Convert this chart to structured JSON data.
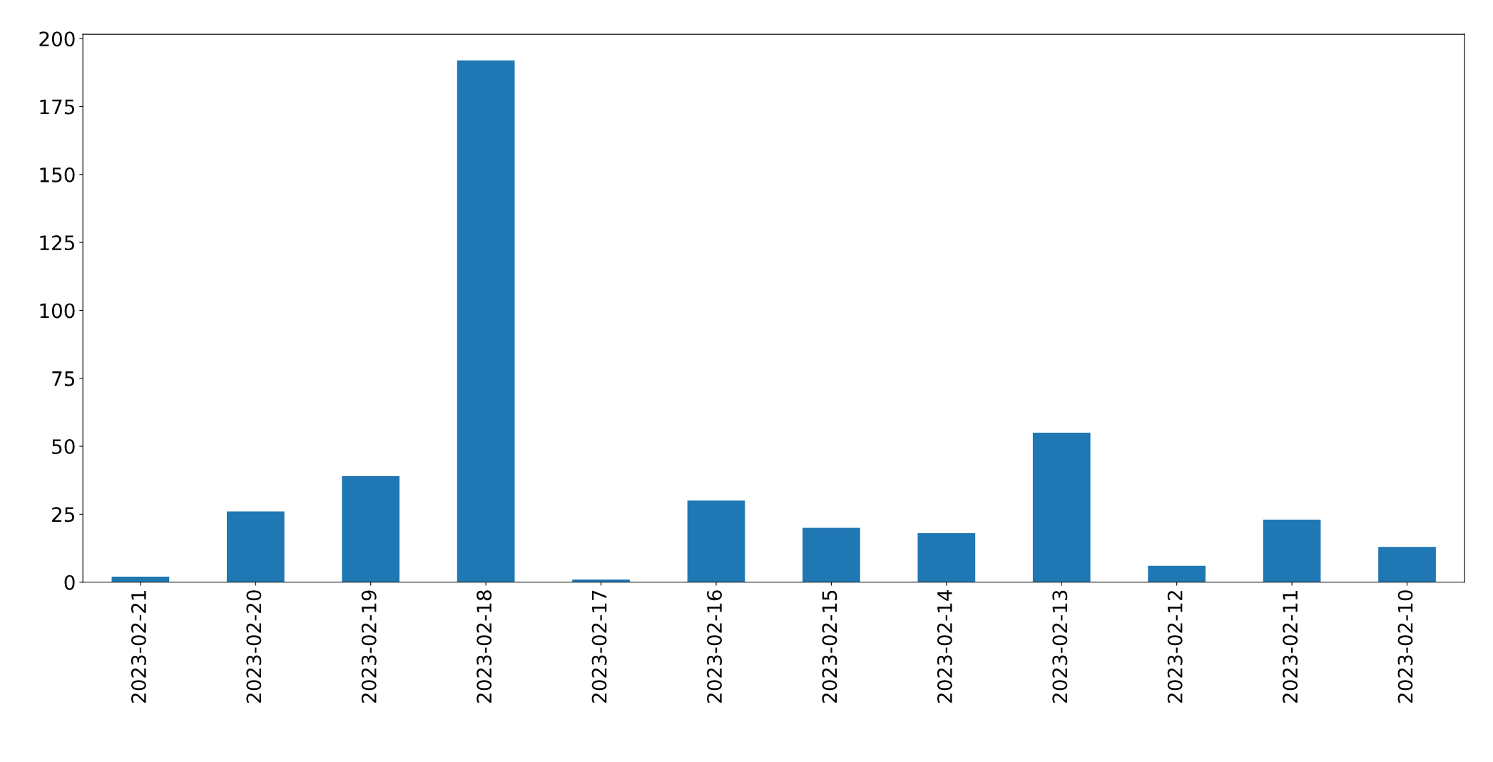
{
  "chart_data": {
    "type": "bar",
    "categories": [
      "2023-02-21",
      "2023-02-20",
      "2023-02-19",
      "2023-02-18",
      "2023-02-17",
      "2023-02-16",
      "2023-02-15",
      "2023-02-14",
      "2023-02-13",
      "2023-02-12",
      "2023-02-11",
      "2023-02-10"
    ],
    "values": [
      2,
      26,
      39,
      192,
      1,
      30,
      20,
      18,
      55,
      6,
      23,
      13
    ],
    "color": "#1f77b4",
    "ylim": [
      0,
      201.6
    ],
    "yticks": [
      0,
      25,
      50,
      75,
      100,
      125,
      150,
      175,
      200
    ],
    "grid": false,
    "legend": false
  }
}
